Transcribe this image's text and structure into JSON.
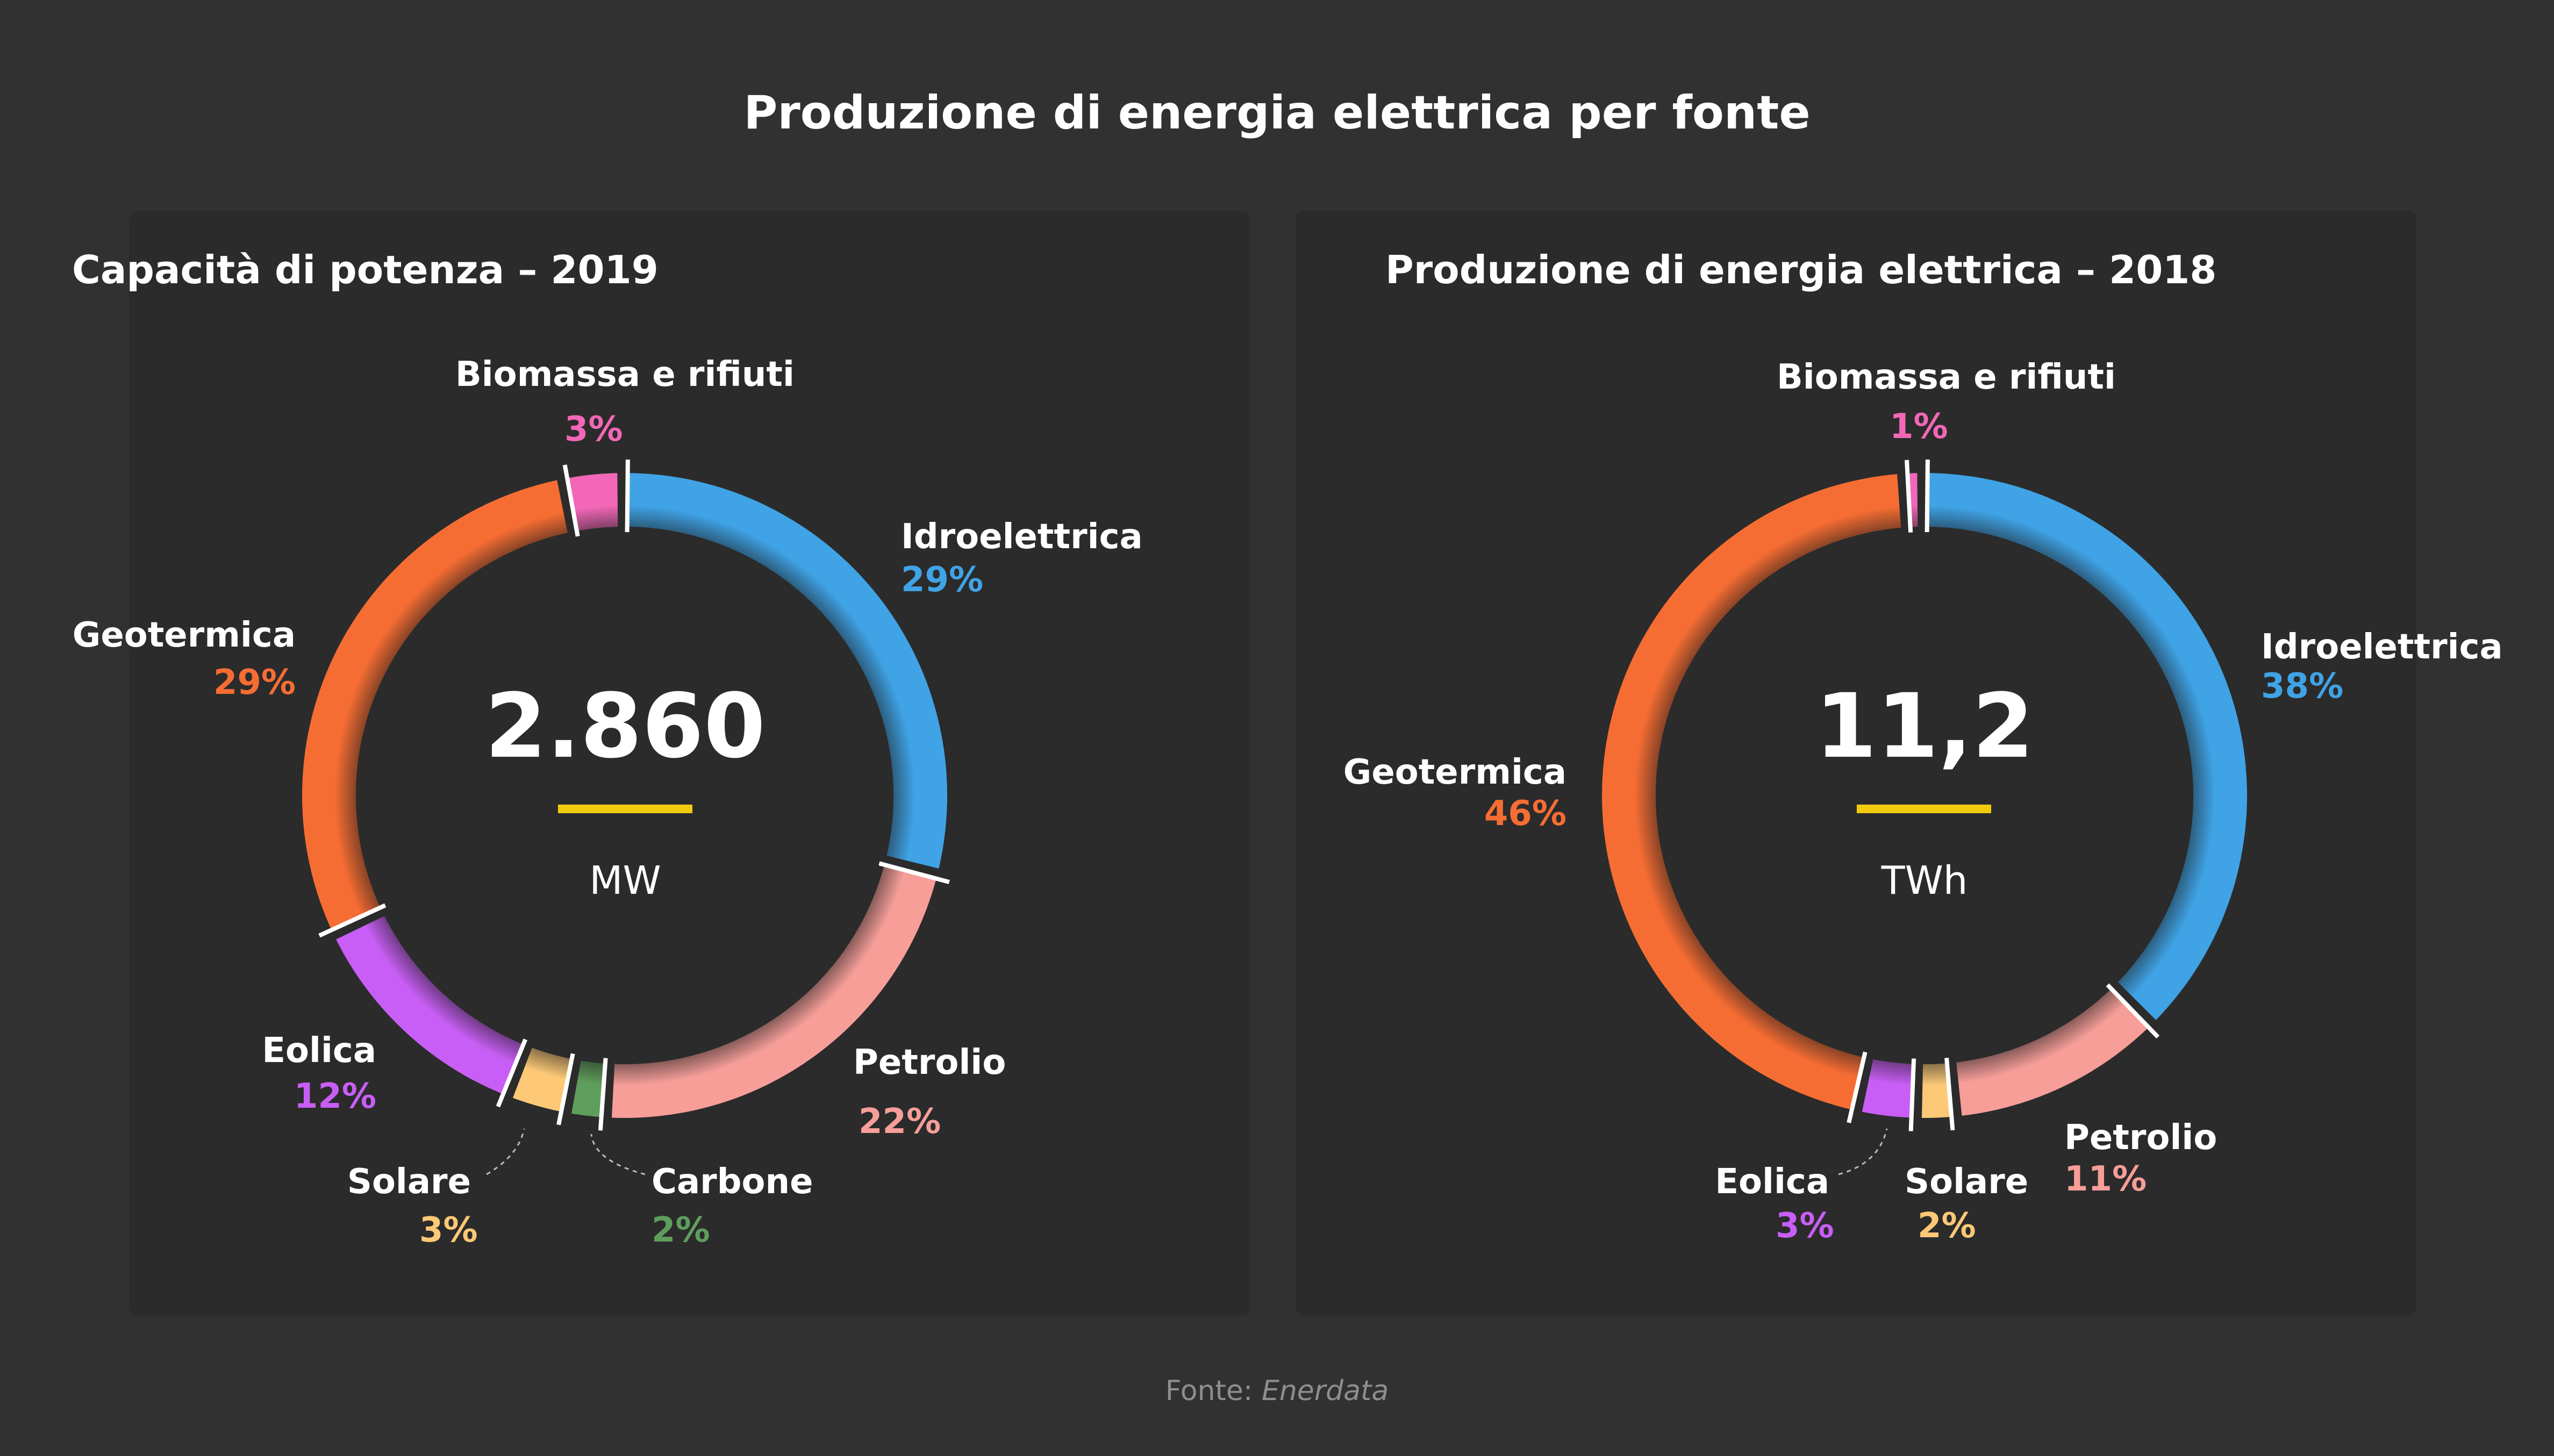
{
  "title": "Produzione di energia elettrica per fonte",
  "source_label": "Fonte:",
  "source_name": "Enerdata",
  "colors": {
    "Idroelettrica": "#3fa3e6",
    "Petrolio": "#f79e99",
    "Carbone": "#5e9e5c",
    "Solare": "#fdc977",
    "Eolica": "#c85ef5",
    "Geotermica": "#f66d33",
    "Biomassa e rifiuti": "#f267b7",
    "accent": "#f2cc0c"
  },
  "chart_data": [
    {
      "type": "pie",
      "title": "Capacità di potenza – 2019",
      "center_value": "2.860",
      "center_unit": "MW",
      "slices": [
        {
          "name": "Idroelettrica",
          "value": 29,
          "label": "29%"
        },
        {
          "name": "Petrolio",
          "value": 22,
          "label": "22%"
        },
        {
          "name": "Carbone",
          "value": 2,
          "label": "2%"
        },
        {
          "name": "Solare",
          "value": 3,
          "label": "3%"
        },
        {
          "name": "Eolica",
          "value": 12,
          "label": "12%"
        },
        {
          "name": "Geotermica",
          "value": 29,
          "label": "29%"
        },
        {
          "name": "Biomassa e rifiuti",
          "value": 3,
          "label": "3%"
        }
      ]
    },
    {
      "type": "pie",
      "title": "Produzione di energia elettrica – 2018",
      "center_value": "11,2",
      "center_unit": "TWh",
      "slices": [
        {
          "name": "Idroelettrica",
          "value": 38,
          "label": "38%"
        },
        {
          "name": "Petrolio",
          "value": 11,
          "label": "11%"
        },
        {
          "name": "Solare",
          "value": 2,
          "label": "2%"
        },
        {
          "name": "Eolica",
          "value": 3,
          "label": "3%"
        },
        {
          "name": "Geotermica",
          "value": 46,
          "label": "46%"
        },
        {
          "name": "Biomassa e rifiuti",
          "value": 1,
          "label": "1%"
        }
      ]
    }
  ]
}
